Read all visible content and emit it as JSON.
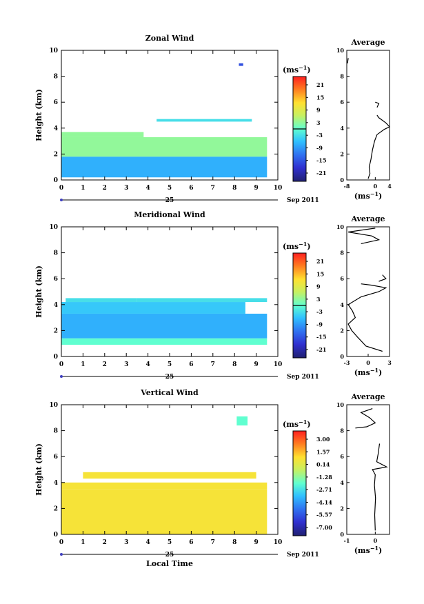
{
  "colorbar_unit_label": "(ms",
  "colorbar_unit_exp": "−1",
  "avg_unit_label": "(ms",
  "avg_unit_exp": "−1",
  "common": {
    "day_label": "25",
    "month_label": "Sep 2011",
    "x_ticks": [
      "0",
      "1",
      "2",
      "3",
      "4",
      "5",
      "6",
      "7",
      "8",
      "9",
      "10"
    ],
    "y_ticks": [
      "0",
      "2",
      "4",
      "6",
      "8",
      "10"
    ],
    "ylabel": "Height (km)",
    "xlabel": "Local Time"
  },
  "chart_data": [
    {
      "type": "heatmap",
      "title": "Zonal Wind",
      "xlim": [
        0,
        10
      ],
      "ylim": [
        0,
        10
      ],
      "colorbar_ticks": [
        "21",
        "15",
        "9",
        "3",
        "-3",
        "-9",
        "-15",
        "-21"
      ],
      "colorbar_range": [
        -24,
        24
      ],
      "cells": [
        {
          "x0": 0.0,
          "x1": 9.5,
          "y0": 0.2,
          "y1": 1.8,
          "value": -7
        },
        {
          "x0": 0.0,
          "x1": 9.5,
          "y0": 1.8,
          "y1": 3.3,
          "value": 3
        },
        {
          "x0": 0.0,
          "x1": 3.8,
          "y0": 3.3,
          "y1": 3.7,
          "value": 3
        },
        {
          "x0": 4.4,
          "x1": 8.8,
          "y0": 4.5,
          "y1": 4.7,
          "value": -3
        },
        {
          "x0": 8.2,
          "x1": 8.4,
          "y0": 8.8,
          "y1": 9.0,
          "value": -15
        }
      ]
    },
    {
      "type": "line",
      "title": "Average",
      "xlim": [
        -8,
        4
      ],
      "ylim": [
        0,
        10
      ],
      "x_ticks": [
        "-8",
        "0",
        "4"
      ],
      "series": [
        {
          "points": [
            [
              -2,
              0.1
            ],
            [
              -1.5,
              0.5
            ],
            [
              -1.7,
              1.0
            ],
            [
              -1.2,
              1.6
            ],
            [
              -0.8,
              2.3
            ],
            [
              -0.2,
              3.0
            ],
            [
              0.5,
              3.5
            ],
            [
              2.5,
              3.9
            ],
            [
              4.0,
              4.1
            ],
            [
              3.0,
              4.4
            ],
            [
              2.0,
              4.6
            ],
            [
              1.0,
              4.8
            ],
            [
              0.5,
              5.0
            ]
          ]
        },
        {
          "points": [
            [
              0.5,
              5.6
            ],
            [
              1.0,
              5.9
            ],
            [
              0.0,
              6.0
            ]
          ]
        },
        {
          "points": [
            [
              -7.8,
              9.0
            ],
            [
              -7.6,
              9.4
            ]
          ]
        }
      ]
    },
    {
      "type": "heatmap",
      "title": "Meridional Wind",
      "xlim": [
        0,
        10
      ],
      "ylim": [
        0,
        10
      ],
      "colorbar_ticks": [
        "21",
        "15",
        "9",
        "3",
        "-3",
        "-9",
        "-15",
        "-21"
      ],
      "colorbar_range": [
        -24,
        24
      ],
      "cells": [
        {
          "x0": 0.0,
          "x1": 9.5,
          "y0": 0.9,
          "y1": 1.4,
          "value": 0
        },
        {
          "x0": 0.0,
          "x1": 9.5,
          "y0": 1.4,
          "y1": 3.3,
          "value": -7
        },
        {
          "x0": 0.0,
          "x1": 8.5,
          "y0": 3.3,
          "y1": 4.2,
          "value": -5
        },
        {
          "x0": 3.5,
          "x1": 9.5,
          "y0": 4.2,
          "y1": 4.5,
          "value": -3
        },
        {
          "x0": 0.2,
          "x1": 3.5,
          "y0": 4.2,
          "y1": 4.5,
          "value": -3
        }
      ]
    },
    {
      "type": "line",
      "title": "Average",
      "xlim": [
        -3,
        3
      ],
      "ylim": [
        0,
        10
      ],
      "x_ticks": [
        "-3",
        "0",
        "3"
      ],
      "series": [
        {
          "points": [
            [
              2.0,
              0.4
            ],
            [
              -0.3,
              0.8
            ],
            [
              -1.5,
              1.5
            ],
            [
              -2.3,
              2.0
            ],
            [
              -2.8,
              2.5
            ],
            [
              -1.8,
              3.0
            ],
            [
              -2.2,
              3.5
            ],
            [
              -2.8,
              4.0
            ],
            [
              -1.0,
              4.6
            ],
            [
              1.5,
              5.0
            ],
            [
              2.5,
              5.3
            ],
            [
              0.5,
              5.5
            ],
            [
              -1.0,
              5.6
            ]
          ]
        },
        {
          "points": [
            [
              1.5,
              5.8
            ],
            [
              2.5,
              6.0
            ],
            [
              2.0,
              6.3
            ]
          ]
        },
        {
          "points": [
            [
              -1.0,
              8.7
            ],
            [
              1.5,
              9.0
            ],
            [
              0.5,
              9.3
            ],
            [
              -2.8,
              9.6
            ],
            [
              1.0,
              9.9
            ]
          ]
        }
      ]
    },
    {
      "type": "heatmap",
      "title": "Vertical Wind",
      "xlim": [
        0,
        10
      ],
      "ylim": [
        0,
        10
      ],
      "colorbar_ticks": [
        "3.00",
        "1.57",
        "0.14",
        "-1.28",
        "-2.71",
        "-4.14",
        "-5.57",
        "-7.00"
      ],
      "colorbar_range": [
        -7.0,
        3.0
      ],
      "cells": [
        {
          "x0": 0.0,
          "x1": 9.5,
          "y0": 0.0,
          "y1": 3.5,
          "value": 0.3
        },
        {
          "x0": 0.0,
          "x1": 9.5,
          "y0": 3.5,
          "y1": 4.0,
          "value": 0.3
        },
        {
          "x0": 1.0,
          "x1": 9.0,
          "y0": 4.3,
          "y1": 4.8,
          "value": 0.3
        },
        {
          "x0": 8.1,
          "x1": 8.6,
          "y0": 8.4,
          "y1": 9.1,
          "value": -2.0
        }
      ]
    },
    {
      "type": "line",
      "title": "Average",
      "xlim": [
        -1,
        0.5
      ],
      "ylim": [
        0,
        10
      ],
      "x_ticks": [
        "-1",
        "0"
      ],
      "series": [
        {
          "points": [
            [
              0,
              0.3
            ],
            [
              -0.02,
              1.5
            ],
            [
              0.01,
              2.8
            ],
            [
              -0.03,
              3.8
            ],
            [
              0,
              4.6
            ],
            [
              -0.1,
              5.0
            ],
            [
              0.4,
              5.2
            ],
            [
              0.05,
              5.6
            ],
            [
              0.1,
              6.2
            ],
            [
              0.15,
              7.0
            ]
          ]
        },
        {
          "points": [
            [
              -0.7,
              8.2
            ],
            [
              -0.3,
              8.3
            ],
            [
              0.0,
              8.6
            ],
            [
              -0.2,
              9.0
            ],
            [
              -0.5,
              9.4
            ],
            [
              -0.1,
              9.7
            ]
          ]
        }
      ]
    }
  ]
}
